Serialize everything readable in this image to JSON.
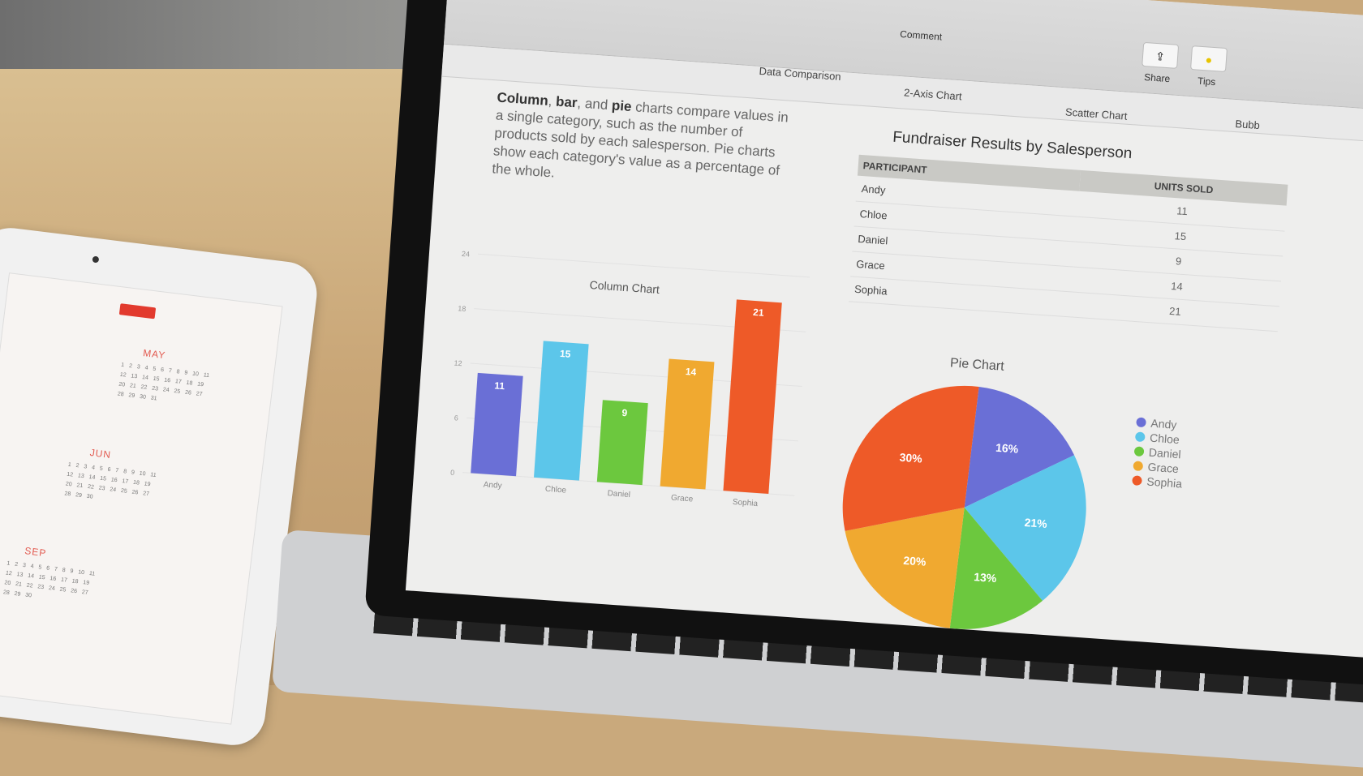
{
  "ipad": {
    "months": [
      "MAY",
      "JUN",
      "SEP"
    ]
  },
  "toolbar": {
    "items": [
      "Comment",
      "Data Comparison",
      "2-Axis Chart",
      "Scatter Chart",
      "Bubb"
    ],
    "share_label": "Share",
    "tips_label": "Tips"
  },
  "intro": {
    "bold1": "Column",
    "sep1": ", ",
    "bold2": "bar",
    "mid": ", and ",
    "bold3": "pie",
    "rest": " charts compare values in a single category, such as the number of products sold by each salesperson. Pie charts show each category's value as a percentage of the whole."
  },
  "table": {
    "title": "Fundraiser Results by Salesperson",
    "headers": [
      "PARTICIPANT",
      "UNITS SOLD"
    ],
    "rows": [
      [
        "Andy",
        "11"
      ],
      [
        "Chloe",
        "15"
      ],
      [
        "Daniel",
        "9"
      ],
      [
        "Grace",
        "14"
      ],
      [
        "Sophia",
        "21"
      ]
    ]
  },
  "colors": {
    "Andy": "#6a6fd6",
    "Chloe": "#5cc6ea",
    "Daniel": "#6cc83e",
    "Grace": "#f0a930",
    "Sophia": "#ee5a28"
  },
  "chart_data": [
    {
      "type": "bar",
      "title": "Column Chart",
      "categories": [
        "Andy",
        "Chloe",
        "Daniel",
        "Grace",
        "Sophia"
      ],
      "values": [
        11,
        15,
        9,
        14,
        21
      ],
      "ylim": [
        0,
        24
      ],
      "yticks": [
        0,
        6,
        12,
        18,
        24
      ],
      "data_labels": [
        "11",
        "15",
        "9",
        "14",
        "21"
      ]
    },
    {
      "type": "pie",
      "title": "Pie Chart",
      "categories": [
        "Andy",
        "Chloe",
        "Daniel",
        "Grace",
        "Sophia"
      ],
      "values": [
        16,
        21,
        13,
        20,
        30
      ],
      "data_labels": [
        "16%",
        "21%",
        "13%",
        "20%",
        "30%"
      ],
      "legend": "right"
    }
  ]
}
